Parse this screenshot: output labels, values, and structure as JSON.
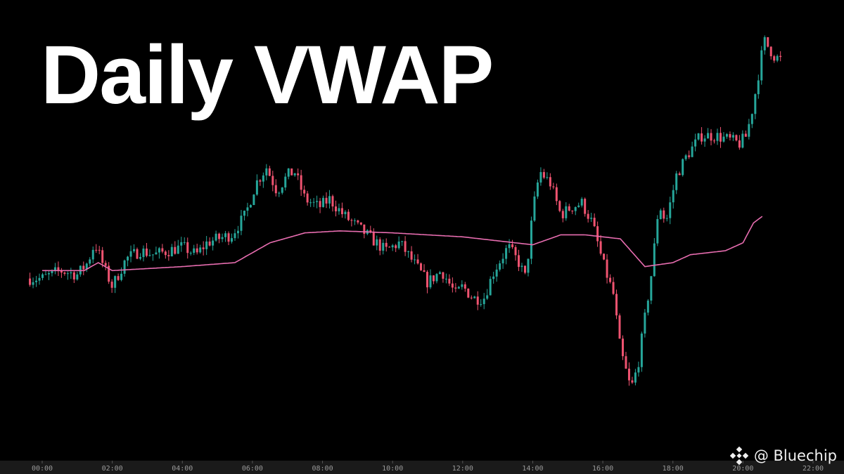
{
  "title": "Daily VWAP",
  "brand": {
    "handle": "@ Bluechip",
    "icon": "binance-logo-icon",
    "icon_color": "#f0f0f0"
  },
  "chart_data": {
    "type": "candlestick",
    "title": "Daily VWAP",
    "xlabel": "",
    "ylabel": "",
    "x_ticks": [
      "00:00",
      "02:00",
      "04:00",
      "06:00",
      "08:00",
      "10:00",
      "12:00",
      "14:00",
      "16:00",
      "18:00",
      "20:00",
      "22:00"
    ],
    "xlim_hours": [
      0,
      22
    ],
    "ylim": [
      0,
      100
    ],
    "grid": false,
    "legend": "none",
    "colors": {
      "up": "#26a69a",
      "down": "#ef5370",
      "vwap": "#e86db0",
      "background": "#000000",
      "axis": "#1a1a1a"
    },
    "price_path": [
      [
        0.0,
        36
      ],
      [
        0.5,
        38
      ],
      [
        1.0,
        37
      ],
      [
        1.3,
        40
      ],
      [
        1.5,
        45
      ],
      [
        1.8,
        38
      ],
      [
        2.0,
        34
      ],
      [
        2.4,
        41
      ],
      [
        2.8,
        43
      ],
      [
        3.2,
        42
      ],
      [
        3.6,
        43
      ],
      [
        4.0,
        44
      ],
      [
        4.4,
        42
      ],
      [
        4.7,
        45
      ],
      [
        5.0,
        46
      ],
      [
        5.4,
        47
      ],
      [
        5.8,
        52
      ],
      [
        6.1,
        60
      ],
      [
        6.4,
        64
      ],
      [
        6.7,
        58
      ],
      [
        7.0,
        62
      ],
      [
        7.2,
        63
      ],
      [
        7.5,
        56
      ],
      [
        7.9,
        54
      ],
      [
        8.2,
        56
      ],
      [
        8.6,
        52
      ],
      [
        9.0,
        49
      ],
      [
        9.4,
        46
      ],
      [
        9.8,
        43
      ],
      [
        10.2,
        45
      ],
      [
        10.6,
        40
      ],
      [
        11.0,
        35
      ],
      [
        11.4,
        38
      ],
      [
        11.8,
        32
      ],
      [
        12.0,
        34
      ],
      [
        12.3,
        31
      ],
      [
        12.6,
        31
      ],
      [
        12.9,
        38
      ],
      [
        13.3,
        44
      ],
      [
        13.6,
        40
      ],
      [
        13.8,
        36
      ],
      [
        14.0,
        53
      ],
      [
        14.2,
        63
      ],
      [
        14.5,
        60
      ],
      [
        14.8,
        52
      ],
      [
        15.1,
        54
      ],
      [
        15.4,
        55
      ],
      [
        15.7,
        50
      ],
      [
        16.0,
        40
      ],
      [
        16.3,
        32
      ],
      [
        16.5,
        18
      ],
      [
        16.8,
        8
      ],
      [
        17.0,
        14
      ],
      [
        17.2,
        26
      ],
      [
        17.4,
        38
      ],
      [
        17.6,
        55
      ],
      [
        17.8,
        50
      ],
      [
        18.1,
        62
      ],
      [
        18.4,
        67
      ],
      [
        18.8,
        72
      ],
      [
        19.2,
        72
      ],
      [
        19.6,
        71
      ],
      [
        19.9,
        70
      ],
      [
        20.1,
        72
      ],
      [
        20.3,
        80
      ],
      [
        20.6,
        96
      ],
      [
        20.9,
        92
      ],
      [
        21.1,
        91
      ]
    ],
    "vwap_path": [
      [
        0.0,
        38
      ],
      [
        1.2,
        38
      ],
      [
        1.6,
        40
      ],
      [
        2.0,
        38
      ],
      [
        3.0,
        38.5
      ],
      [
        4.0,
        39
      ],
      [
        5.5,
        40
      ],
      [
        6.5,
        45
      ],
      [
        7.5,
        47.5
      ],
      [
        8.5,
        48
      ],
      [
        10.0,
        47.5
      ],
      [
        11.0,
        47
      ],
      [
        12.0,
        46.5
      ],
      [
        14.0,
        44.5
      ],
      [
        14.8,
        47
      ],
      [
        15.5,
        47
      ],
      [
        16.5,
        46
      ],
      [
        17.2,
        39
      ],
      [
        18.0,
        40
      ],
      [
        18.5,
        42
      ],
      [
        19.5,
        43
      ],
      [
        20.0,
        45
      ],
      [
        20.3,
        50
      ],
      [
        20.6,
        52
      ]
    ]
  }
}
